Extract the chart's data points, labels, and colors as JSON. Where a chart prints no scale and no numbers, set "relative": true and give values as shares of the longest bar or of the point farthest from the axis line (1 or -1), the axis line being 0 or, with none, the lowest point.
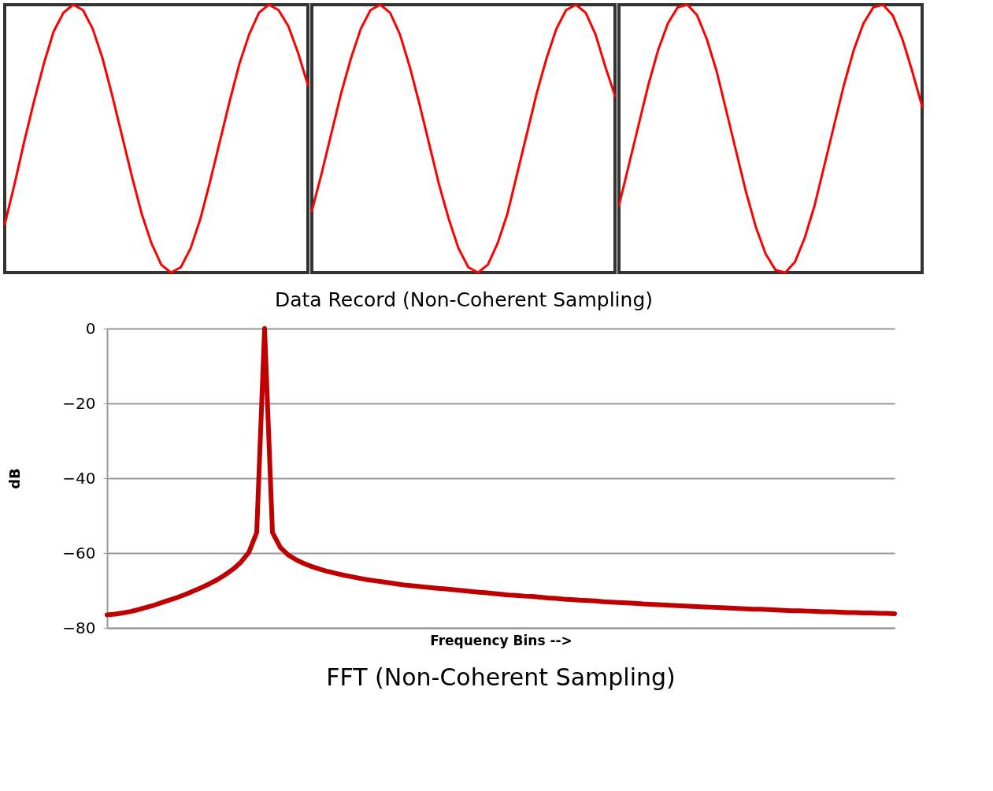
{
  "chart_data": [
    {
      "type": "line",
      "relative": true,
      "categories": [
        null,
        null,
        null,
        null,
        null,
        null,
        null,
        null,
        null,
        null,
        null,
        null,
        null,
        null,
        null,
        null,
        null,
        null,
        null,
        null,
        null,
        null,
        null,
        null,
        null,
        null,
        null,
        null,
        null,
        null,
        null,
        null
      ],
      "series": [
        {
          "color": "#ff0000",
          "values": [
            0.18,
            0.33,
            0.49,
            0.64,
            0.78,
            0.9,
            0.97,
            1,
            0.98,
            0.91,
            0.8,
            0.66,
            0.51,
            0.36,
            0.22,
            0.11,
            0.03,
            0,
            0.02,
            0.09,
            0.2,
            0.34,
            0.49,
            0.64,
            0.78,
            0.89,
            0.97,
            1,
            0.98,
            0.92,
            0.82,
            0.7
          ]
        }
      ]
    },
    {
      "type": "line",
      "relative": true,
      "xlabel": "Data Record (Non-Coherent Sampling)",
      "categories": [
        null,
        null,
        null,
        null,
        null,
        null,
        null,
        null,
        null,
        null,
        null,
        null,
        null,
        null,
        null,
        null,
        null,
        null,
        null,
        null,
        null,
        null,
        null,
        null,
        null,
        null,
        null,
        null,
        null,
        null,
        null,
        null
      ],
      "series": [
        {
          "color": "#ff0000",
          "values": [
            0.23,
            0.37,
            0.52,
            0.67,
            0.8,
            0.91,
            0.98,
            1,
            0.97,
            0.89,
            0.77,
            0.63,
            0.48,
            0.33,
            0.2,
            0.09,
            0.02,
            0,
            0.03,
            0.11,
            0.22,
            0.37,
            0.52,
            0.67,
            0.8,
            0.91,
            0.98,
            1,
            0.97,
            0.89,
            0.77,
            0.66
          ]
        }
      ]
    },
    {
      "type": "line",
      "relative": true,
      "categories": [
        null,
        null,
        null,
        null,
        null,
        null,
        null,
        null,
        null,
        null,
        null,
        null,
        null,
        null,
        null,
        null,
        null,
        null,
        null,
        null,
        null,
        null,
        null,
        null,
        null,
        null,
        null,
        null,
        null,
        null,
        null,
        null
      ],
      "series": [
        {
          "color": "#ff0000",
          "values": [
            0.25,
            0.4,
            0.55,
            0.7,
            0.83,
            0.93,
            0.99,
            1,
            0.96,
            0.87,
            0.75,
            0.6,
            0.45,
            0.3,
            0.17,
            0.07,
            0.01,
            0,
            0.04,
            0.13,
            0.25,
            0.4,
            0.55,
            0.7,
            0.83,
            0.93,
            0.99,
            1,
            0.96,
            0.87,
            0.75,
            0.62
          ]
        }
      ]
    },
    {
      "type": "line",
      "title": "FFT (Non-Coherent Sampling)",
      "xlabel": "Frequency Bins -->",
      "ylabel": "dB",
      "ylim": [
        -80,
        0
      ],
      "yticks": [
        -80,
        -60,
        -40,
        -20,
        0
      ],
      "grid": "y",
      "tick_labels": "y",
      "categories": [
        null,
        null,
        null,
        null,
        null,
        null,
        null,
        null,
        null,
        null,
        null,
        null,
        null,
        null,
        null,
        null,
        null,
        null,
        null,
        null,
        null,
        null,
        null,
        null,
        null,
        null,
        null,
        null,
        null,
        null,
        null,
        null,
        null,
        null,
        null,
        null,
        null,
        null,
        null,
        null,
        null,
        null,
        null,
        null,
        null,
        null,
        null,
        null,
        null,
        null,
        null,
        null,
        null,
        null,
        null,
        null,
        null,
        null,
        null,
        null,
        null,
        null,
        null,
        null,
        null,
        null,
        null,
        null,
        null,
        null,
        null,
        null,
        null,
        null,
        null,
        null,
        null,
        null,
        null,
        null,
        null,
        null,
        null,
        null,
        null,
        null,
        null,
        null,
        null,
        null,
        null,
        null,
        null,
        null,
        null,
        null,
        null,
        null,
        null,
        null,
        null
      ],
      "series": [
        {
          "color": "#c00000",
          "values": [
            -76.5,
            -76.3,
            -76.0,
            -75.6,
            -75.1,
            -74.5,
            -73.9,
            -73.2,
            -72.5,
            -71.8,
            -71.0,
            -70.1,
            -69.2,
            -68.2,
            -67.1,
            -65.8,
            -64.3,
            -62.4,
            -59.8,
            -54.5,
            0,
            -54.5,
            -58.5,
            -60.5,
            -61.8,
            -62.8,
            -63.6,
            -64.3,
            -64.9,
            -65.4,
            -65.9,
            -66.3,
            -66.7,
            -67.1,
            -67.4,
            -67.7,
            -68.0,
            -68.3,
            -68.6,
            -68.8,
            -69.0,
            -69.2,
            -69.4,
            -69.6,
            -69.8,
            -70.0,
            -70.2,
            -70.4,
            -70.6,
            -70.8,
            -71.0,
            -71.2,
            -71.3,
            -71.5,
            -71.6,
            -71.8,
            -72.0,
            -72.1,
            -72.3,
            -72.4,
            -72.6,
            -72.7,
            -72.8,
            -73.0,
            -73.1,
            -73.2,
            -73.3,
            -73.4,
            -73.6,
            -73.7,
            -73.8,
            -73.9,
            -74.0,
            -74.1,
            -74.2,
            -74.3,
            -74.4,
            -74.5,
            -74.6,
            -74.7,
            -74.8,
            -74.9,
            -75.0,
            -75.0,
            -75.1,
            -75.2,
            -75.3,
            -75.4,
            -75.4,
            -75.5,
            -75.6,
            -75.7,
            -75.7,
            -75.8,
            -75.9,
            -75.9,
            -76.0,
            -76.0,
            -76.1,
            -76.1,
            -76.2
          ]
        }
      ]
    }
  ]
}
